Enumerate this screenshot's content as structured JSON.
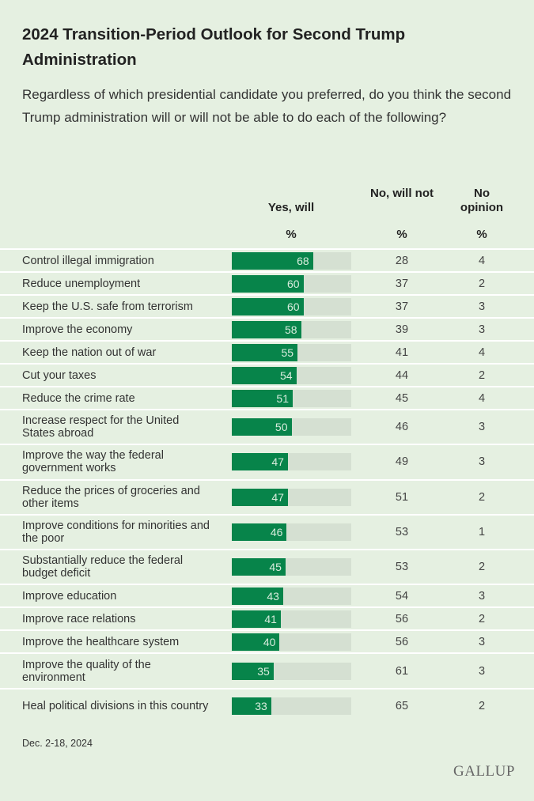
{
  "title": "2024 Transition-Period Outlook for Second Trump Administration",
  "subtitle": "Regardless of which presidential candidate you preferred, do you think the second Trump administration will or will not be able to do each of the following?",
  "footnote": "Dec. 2-18, 2024",
  "logo": "GALLUP",
  "colors": {
    "bar": "#07844a",
    "track": "#d5e0d2",
    "background": "#e5f0e1"
  },
  "chart_data": {
    "type": "table",
    "columns": [
      "Yes, will",
      "No, will not",
      "No opinion"
    ],
    "unit": "%",
    "rows": [
      {
        "label": "Control illegal immigration",
        "yes": 68,
        "no": 28,
        "none": 4
      },
      {
        "label": "Reduce unemployment",
        "yes": 60,
        "no": 37,
        "none": 2
      },
      {
        "label": "Keep the U.S. safe from terrorism",
        "yes": 60,
        "no": 37,
        "none": 3
      },
      {
        "label": "Improve the economy",
        "yes": 58,
        "no": 39,
        "none": 3
      },
      {
        "label": "Keep the nation out of war",
        "yes": 55,
        "no": 41,
        "none": 4
      },
      {
        "label": "Cut your taxes",
        "yes": 54,
        "no": 44,
        "none": 2
      },
      {
        "label": "Reduce the crime rate",
        "yes": 51,
        "no": 45,
        "none": 4
      },
      {
        "label": "Increase respect for the United States abroad",
        "yes": 50,
        "no": 46,
        "none": 3
      },
      {
        "label": "Improve the way the federal government works",
        "yes": 47,
        "no": 49,
        "none": 3
      },
      {
        "label": "Reduce the prices of groceries and other items",
        "yes": 47,
        "no": 51,
        "none": 2
      },
      {
        "label": "Improve conditions for minorities and the poor",
        "yes": 46,
        "no": 53,
        "none": 1
      },
      {
        "label": "Substantially reduce the federal budget deficit",
        "yes": 45,
        "no": 53,
        "none": 2
      },
      {
        "label": "Improve education",
        "yes": 43,
        "no": 54,
        "none": 3
      },
      {
        "label": "Improve race relations",
        "yes": 41,
        "no": 56,
        "none": 2
      },
      {
        "label": "Improve the healthcare system",
        "yes": 40,
        "no": 56,
        "none": 3
      },
      {
        "label": "Improve the quality of the environment",
        "yes": 35,
        "no": 61,
        "none": 3
      },
      {
        "label": "Heal political divisions in this country",
        "yes": 33,
        "no": 65,
        "none": 2
      }
    ]
  }
}
